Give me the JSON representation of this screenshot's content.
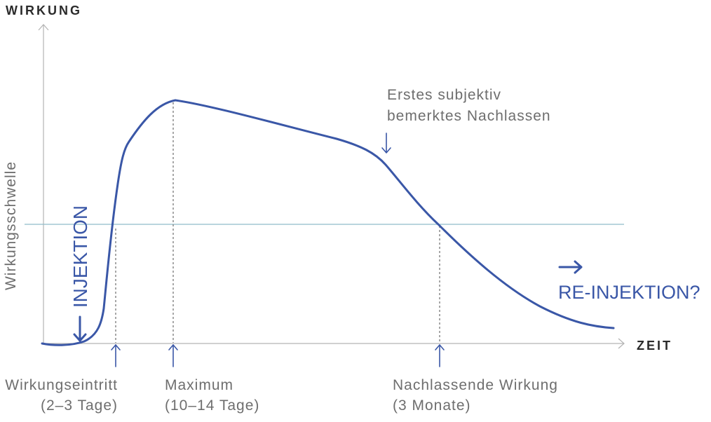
{
  "axes": {
    "y_label": "WIRKUNG",
    "x_label": "ZEIT"
  },
  "threshold_label": "Wirkungsschwelle",
  "injection_label": "INJEKTION",
  "annotation": {
    "line1": "Erstes subjektiv",
    "line2": "bemerktes Nachlassen"
  },
  "reinjection_label": "RE-INJEKTION?",
  "markers": [
    {
      "label": "Wirkungseintritt",
      "sublabel": "(2–3 Tage)"
    },
    {
      "label": "Maximum",
      "sublabel": "(10–14 Tage)"
    },
    {
      "label": "Nachlassende Wirkung",
      "sublabel": "(3 Monate)"
    }
  ],
  "icons": {
    "injection_arrow": "arrow-down-icon",
    "annotation_arrow": "arrow-down-icon",
    "marker_arrows": "arrow-up-icon",
    "reinjection_arrow": "arrow-right-icon"
  },
  "colors": {
    "curve": "#3a57a7",
    "threshold": "#8fbcca",
    "axis": "#b3b3b3",
    "text": "#6e6e6e",
    "heading": "#2b2b2b"
  }
}
